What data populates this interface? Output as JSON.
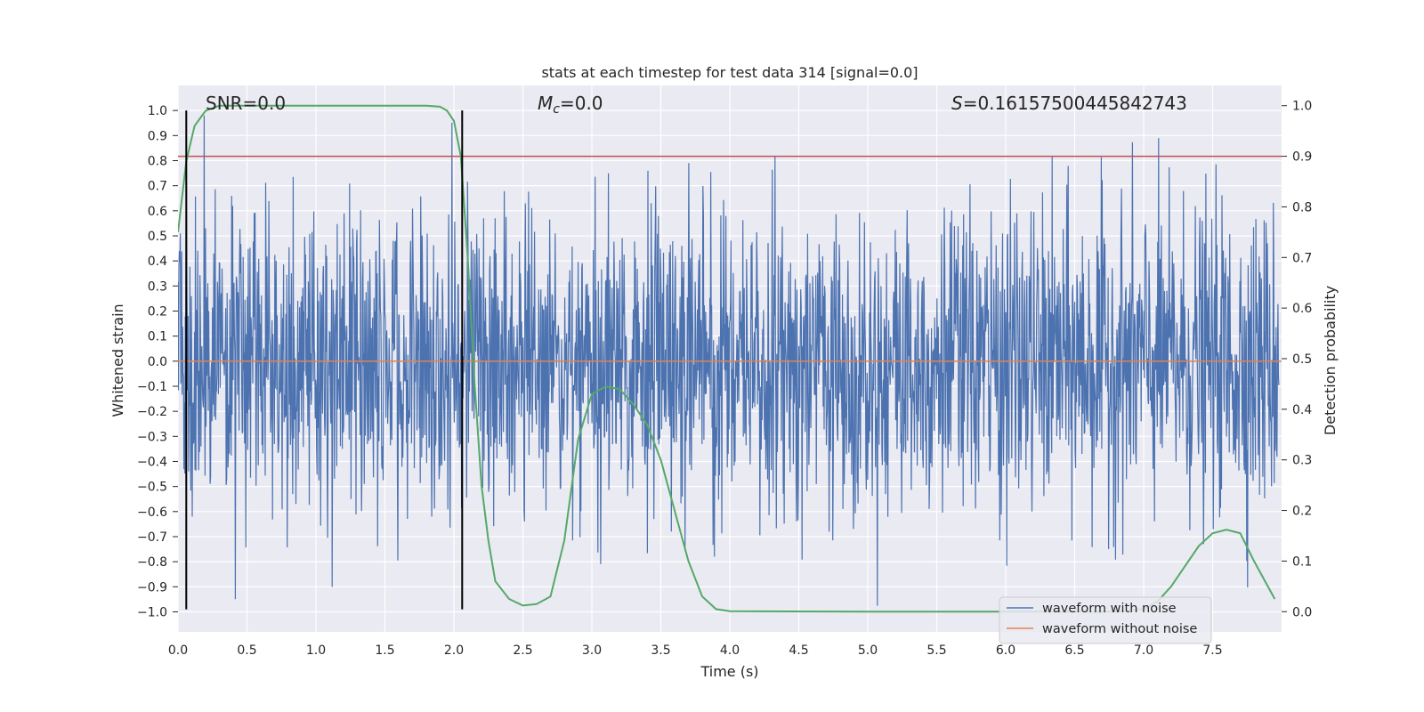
{
  "chart_data": {
    "type": "line",
    "title": "stats at each timestep for test data 314 [signal=0.0]",
    "xlabel": "Time (s)",
    "ylabel_left": "Whitened strain",
    "ylabel_right": "Detection probability",
    "xlim": [
      0.0,
      8.0
    ],
    "ylim_left": [
      -1.08,
      1.1
    ],
    "ylim_right": [
      -0.04,
      1.04
    ],
    "x_ticks": [
      0.0,
      0.5,
      1.0,
      1.5,
      2.0,
      2.5,
      3.0,
      3.5,
      4.0,
      4.5,
      5.0,
      5.5,
      6.0,
      6.5,
      7.0,
      7.5
    ],
    "x_tick_labels": [
      "0.0",
      "0.5",
      "1.0",
      "1.5",
      "2.0",
      "2.5",
      "3.0",
      "3.5",
      "4.0",
      "4.5",
      "5.0",
      "5.5",
      "6.0",
      "6.5",
      "7.0",
      "7.5"
    ],
    "y_left_ticks": [
      1.0,
      0.9,
      0.8,
      0.7,
      0.6,
      0.5,
      0.4,
      0.3,
      0.2,
      0.1,
      0.0,
      -0.1,
      -0.2,
      -0.3,
      -0.4,
      -0.5,
      -0.6,
      -0.7,
      -0.8,
      -0.9,
      -1.0
    ],
    "y_left_tick_labels": [
      "1.0",
      "0.9",
      "0.8",
      "0.7",
      "0.6",
      "0.5",
      "0.4",
      "0.3",
      "0.2",
      "0.1",
      "0.0",
      "−0.1",
      "−0.2",
      "−0.3",
      "−0.4",
      "−0.5",
      "−0.6",
      "−0.7",
      "−0.8",
      "−0.9",
      "−1.0"
    ],
    "y_right_ticks": [
      1.0,
      0.9,
      0.8,
      0.7,
      0.6,
      0.5,
      0.4,
      0.3,
      0.2,
      0.1,
      0.0
    ],
    "y_right_tick_labels": [
      "1.0",
      "0.9",
      "0.8",
      "0.7",
      "0.6",
      "0.5",
      "0.4",
      "0.3",
      "0.2",
      "0.1",
      "0.0"
    ],
    "grid": true,
    "legend_position": "lower-right",
    "series": [
      {
        "name": "waveform with noise",
        "color": "#4c72b0",
        "axis": "left",
        "kind": "noise",
        "typical_amplitude": 0.3,
        "peak_range": [
          -0.99,
          0.98
        ]
      },
      {
        "name": "waveform without noise",
        "color": "#dd8452",
        "axis": "left",
        "kind": "flat",
        "value": 0.0
      },
      {
        "name": "detection probability",
        "color": "#55a868",
        "axis": "right",
        "in_legend": false,
        "x": [
          0.0,
          0.06,
          0.12,
          0.2,
          0.3,
          0.5,
          1.0,
          1.5,
          1.8,
          1.9,
          1.95,
          2.0,
          2.05,
          2.1,
          2.15,
          2.2,
          2.25,
          2.3,
          2.4,
          2.5,
          2.6,
          2.7,
          2.8,
          2.9,
          3.0,
          3.1,
          3.2,
          3.3,
          3.4,
          3.5,
          3.6,
          3.7,
          3.8,
          3.9,
          4.0,
          5.0,
          6.0,
          6.8,
          7.0,
          7.1,
          7.2,
          7.3,
          7.4,
          7.5,
          7.6,
          7.7,
          7.8,
          7.95
        ],
        "y": [
          0.75,
          0.89,
          0.96,
          0.99,
          1.0,
          1.0,
          1.0,
          1.0,
          1.0,
          0.998,
          0.99,
          0.97,
          0.9,
          0.7,
          0.45,
          0.25,
          0.14,
          0.06,
          0.025,
          0.012,
          0.015,
          0.03,
          0.14,
          0.34,
          0.43,
          0.445,
          0.44,
          0.41,
          0.37,
          0.3,
          0.2,
          0.1,
          0.03,
          0.005,
          0.001,
          0.0,
          0.0,
          0.0,
          0.005,
          0.02,
          0.05,
          0.09,
          0.13,
          0.155,
          0.162,
          0.155,
          0.1,
          0.025
        ]
      },
      {
        "name": "threshold",
        "color": "#c44e52",
        "axis": "right",
        "in_legend": false,
        "value": 0.9
      }
    ],
    "vertical_lines": [
      {
        "x": 0.06,
        "color": "#000000",
        "from_left_y": -0.99,
        "to_left_y": 1.0
      },
      {
        "x": 2.06,
        "color": "#000000",
        "from_left_y": -0.99,
        "to_left_y": 1.0
      }
    ],
    "annotations": {
      "snr": "SNR=0.0",
      "mc_symbol": "M",
      "mc_subscript": "c",
      "mc_value": "=0.0",
      "s_symbol": "S",
      "s_value": "=0.16157500445842743"
    },
    "colors": {
      "background": "#eaeaf2",
      "grid": "#ffffff",
      "text": "#262626"
    }
  }
}
